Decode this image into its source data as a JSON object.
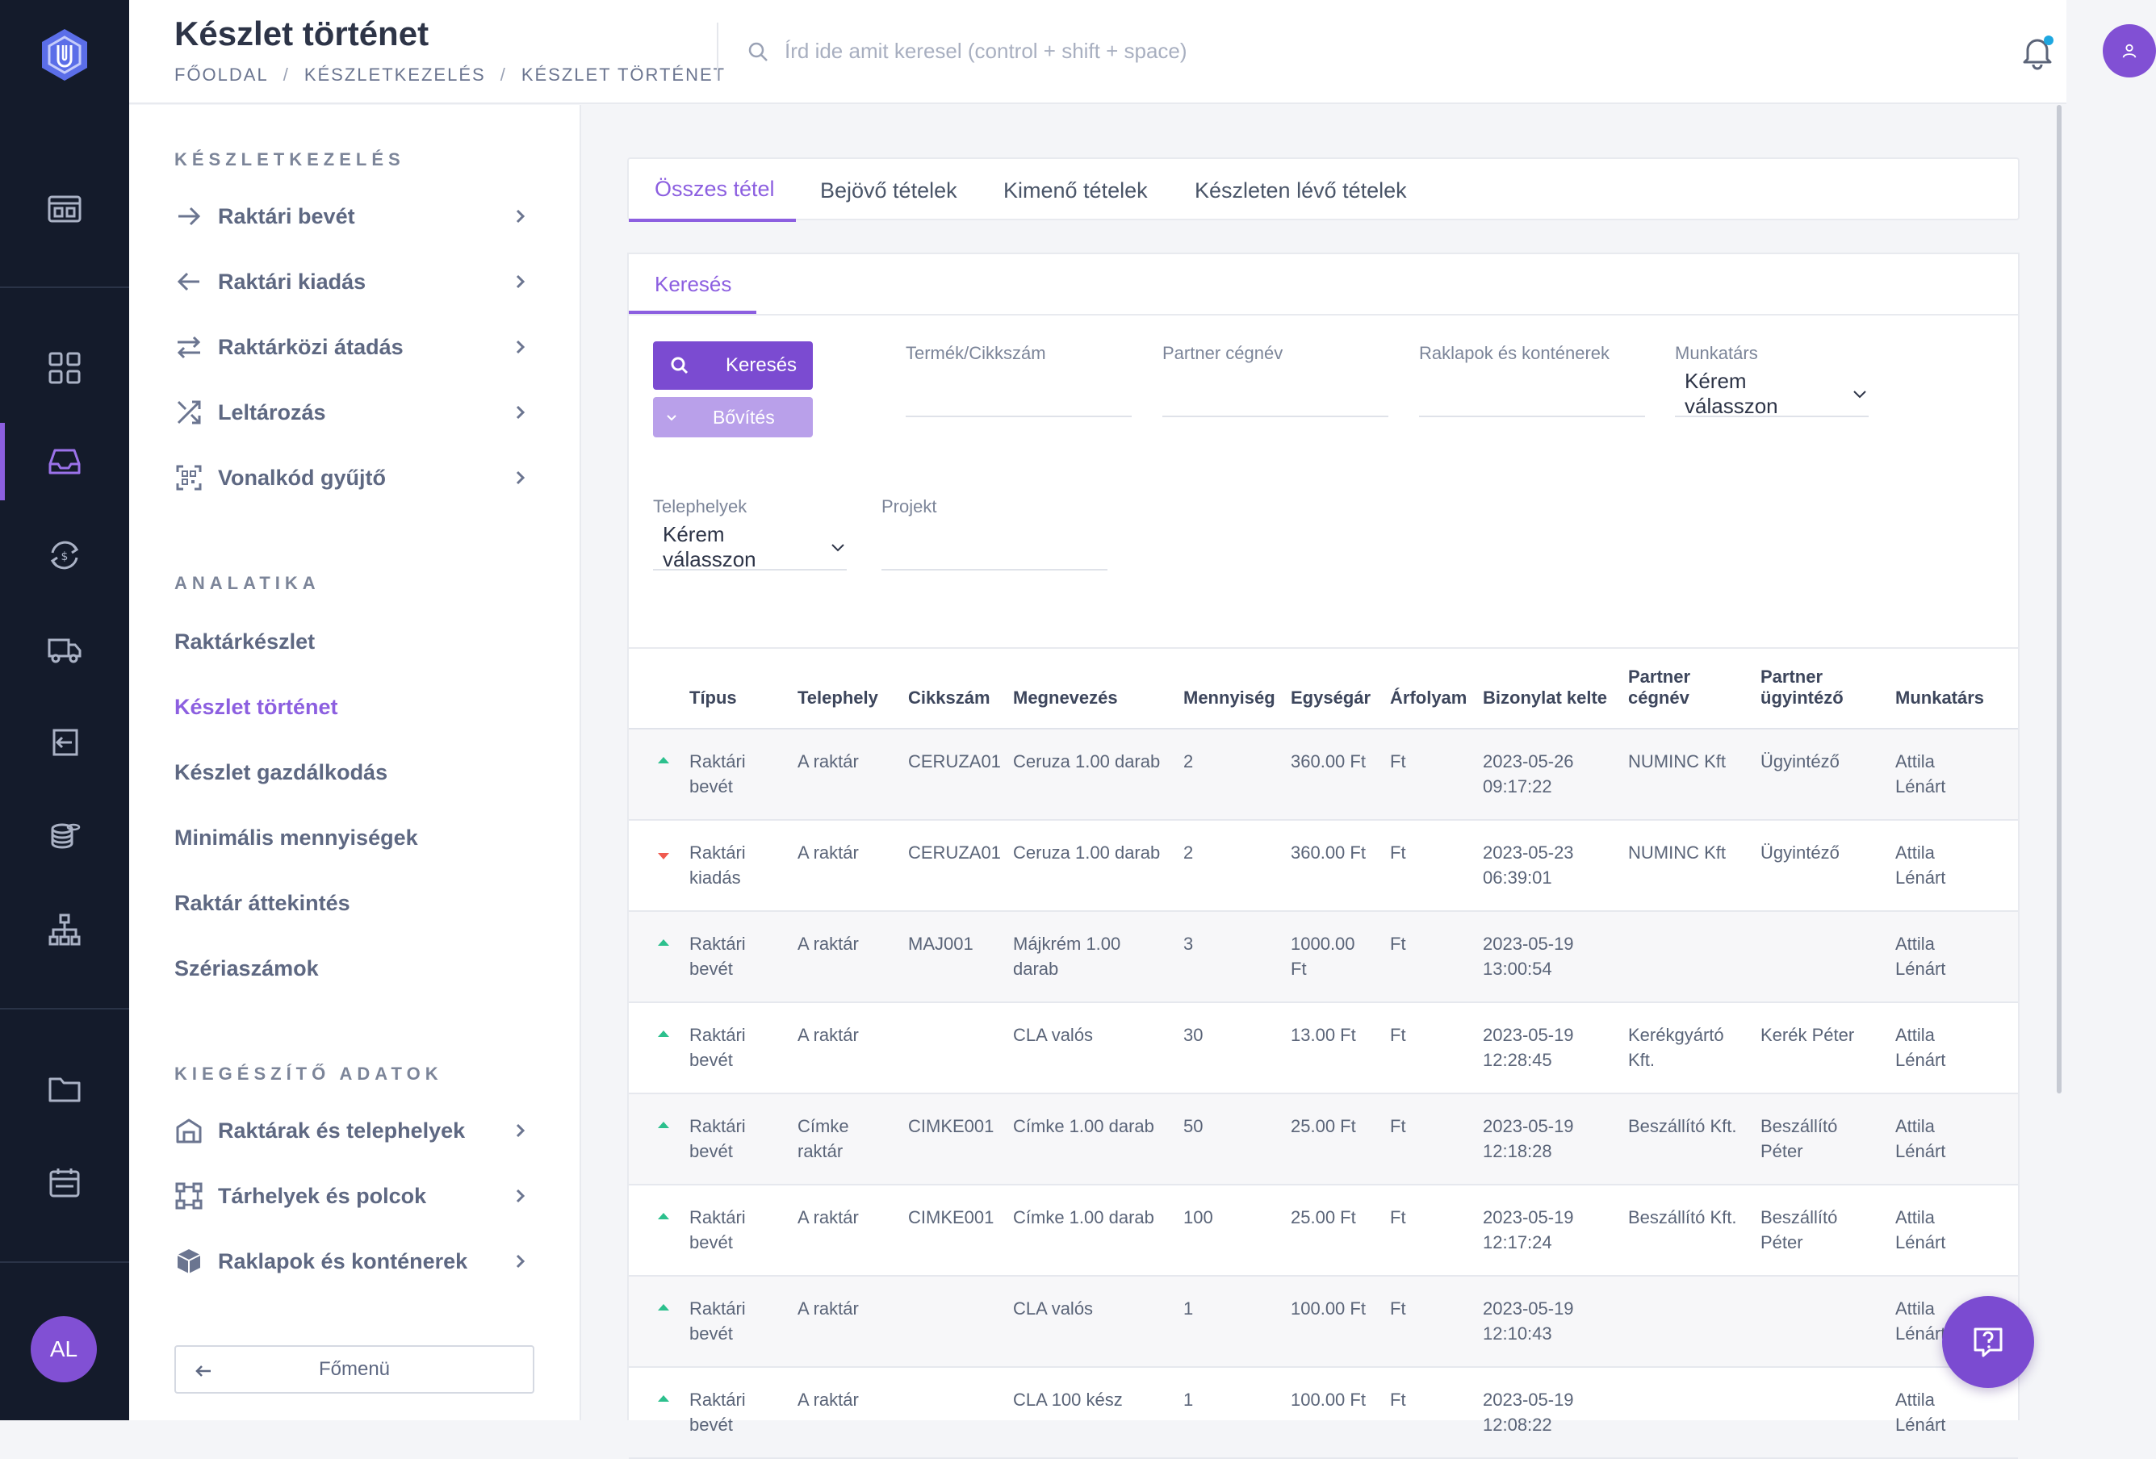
{
  "header": {
    "title": "Készlet történet",
    "breadcrumb": [
      "FŐOLDAL",
      "KÉSZLETKEZELÉS",
      "KÉSZLET TÖRTÉNET"
    ],
    "search_placeholder": "Írd ide amit keresel (control + shift + space)"
  },
  "rail": {
    "avatar_initials": "AL"
  },
  "subnav": {
    "sections": [
      {
        "title": "KÉSZLETKEZELÉS",
        "items": [
          {
            "label": "Raktári bevét",
            "icon": "arrow-right-icon"
          },
          {
            "label": "Raktári kiadás",
            "icon": "arrow-left-icon"
          },
          {
            "label": "Raktárközi átadás",
            "icon": "transfer-icon"
          },
          {
            "label": "Leltározás",
            "icon": "shuffle-icon"
          },
          {
            "label": "Vonalkód gyűjtő",
            "icon": "barcode-scan-icon"
          }
        ]
      },
      {
        "title": "ANALATIKA",
        "items": [
          {
            "label": "Raktárkészlet"
          },
          {
            "label": "Készlet történet",
            "active": true
          },
          {
            "label": "Készlet gazdálkodás"
          },
          {
            "label": "Minimális mennyiségek"
          },
          {
            "label": "Raktár áttekintés"
          },
          {
            "label": "Szériaszámok"
          }
        ]
      },
      {
        "title": "KIEGÉSZÍTŐ ADATOK",
        "items": [
          {
            "label": "Raktárak és telephelyek",
            "icon": "warehouse-icon"
          },
          {
            "label": "Tárhelyek és polcok",
            "icon": "shelves-icon"
          },
          {
            "label": "Raklapok és konténerek",
            "icon": "box-icon"
          }
        ]
      }
    ],
    "main_menu_button": "Főmenü"
  },
  "tabs": [
    "Összes tétel",
    "Bejövő tételek",
    "Kimenő tételek",
    "Készleten lévő tételek"
  ],
  "filters": {
    "tab": "Keresés",
    "search_button": "Keresés",
    "expand_button": "Bővítés",
    "fields": {
      "product": "Termék/Cikkszám",
      "partner": "Partner cégnév",
      "pallets": "Raklapok és konténerek",
      "employee": "Munkatárs",
      "sites": "Telephelyek",
      "project": "Projekt"
    },
    "select_placeholder": "Kérem válasszon"
  },
  "table": {
    "columns": [
      "Típus",
      "Telephely",
      "Cikkszám",
      "Megnevezés",
      "Mennyiség",
      "Egységár",
      "Árfolyam",
      "Bizonylat kelte",
      "Partner cégnév",
      "Partner ügyintéző",
      "Munkatárs"
    ],
    "rows": [
      {
        "dir": "up",
        "type": "Raktári bevét",
        "site": "A raktár",
        "sku": "CERUZA01",
        "name": "Ceruza 1.00 darab",
        "qty": "2",
        "price": "360.00 Ft",
        "currency": "Ft",
        "date": "2023-05-26 09:17:22",
        "partner": "NUMINC Kft",
        "contact": "Ügyintéző",
        "employee": "Attila Lénárt"
      },
      {
        "dir": "down",
        "type": "Raktári kiadás",
        "site": "A raktár",
        "sku": "CERUZA01",
        "name": "Ceruza 1.00 darab",
        "qty": "2",
        "price": "360.00 Ft",
        "currency": "Ft",
        "date": "2023-05-23 06:39:01",
        "partner": "NUMINC Kft",
        "contact": "Ügyintéző",
        "employee": "Attila Lénárt"
      },
      {
        "dir": "up",
        "type": "Raktári bevét",
        "site": "A raktár",
        "sku": "MAJ001",
        "name": "Májkrém 1.00 darab",
        "qty": "3",
        "price": "1000.00 Ft",
        "currency": "Ft",
        "date": "2023-05-19 13:00:54",
        "partner": "",
        "contact": "",
        "employee": "Attila Lénárt"
      },
      {
        "dir": "up",
        "type": "Raktári bevét",
        "site": "A raktár",
        "sku": "",
        "name": "CLA valós",
        "qty": "30",
        "price": "13.00 Ft",
        "currency": "Ft",
        "date": "2023-05-19 12:28:45",
        "partner": "Kerékgyártó Kft.",
        "contact": "Kerék Péter",
        "employee": "Attila Lénárt"
      },
      {
        "dir": "up",
        "type": "Raktári bevét",
        "site": "Címke raktár",
        "sku": "CIMKE001",
        "name": "Címke 1.00 darab",
        "qty": "50",
        "price": "25.00 Ft",
        "currency": "Ft",
        "date": "2023-05-19 12:18:28",
        "partner": "Beszállító Kft.",
        "contact": "Beszállító Péter",
        "employee": "Attila Lénárt"
      },
      {
        "dir": "up",
        "type": "Raktári bevét",
        "site": "A raktár",
        "sku": "CIMKE001",
        "name": "Címke 1.00 darab",
        "qty": "100",
        "price": "25.00 Ft",
        "currency": "Ft",
        "date": "2023-05-19 12:17:24",
        "partner": "Beszállító Kft.",
        "contact": "Beszállító Péter",
        "employee": "Attila Lénárt"
      },
      {
        "dir": "up",
        "type": "Raktári bevét",
        "site": "A raktár",
        "sku": "",
        "name": "CLA valós",
        "qty": "1",
        "price": "100.00 Ft",
        "currency": "Ft",
        "date": "2023-05-19 12:10:43",
        "partner": "",
        "contact": "",
        "employee": "Attila Lénárt"
      },
      {
        "dir": "up",
        "type": "Raktári bevét",
        "site": "A raktár",
        "sku": "",
        "name": "CLA 100 kész",
        "qty": "1",
        "price": "100.00 Ft",
        "currency": "Ft",
        "date": "2023-05-19 12:08:22",
        "partner": "",
        "contact": "",
        "employee": "Attila Lénárt"
      }
    ]
  },
  "colors": {
    "accent": "#8c5fe0",
    "rail_bg": "#141b2b",
    "up": "#2cc08d",
    "down": "#f05a4f"
  }
}
